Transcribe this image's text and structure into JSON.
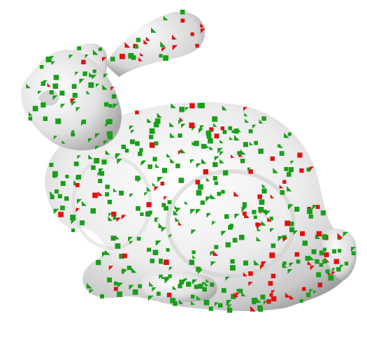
{
  "scene": {
    "background_color": "#ffffff",
    "subject": "bunny-mesh",
    "surface_color": "#e6e6e6",
    "marker_colors": {
      "inlier": "#1a9e1a",
      "outlier": "#e31010"
    }
  }
}
